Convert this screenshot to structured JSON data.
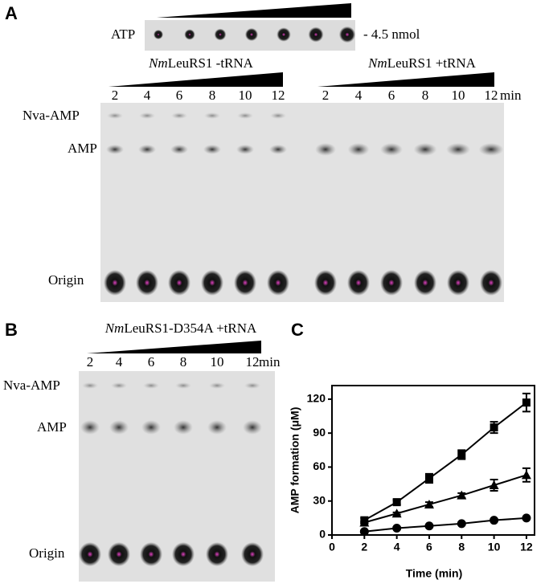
{
  "panel_a": {
    "label": "A",
    "atp_label": "ATP",
    "atp_amount": "- 4.5 nmol",
    "group_minus": {
      "italic": "Nm",
      "rest": "LeuRS1 -tRNA"
    },
    "group_plus": {
      "italic": "Nm",
      "rest": "LeuRS1 +tRNA"
    },
    "lanes": [
      "2",
      "4",
      "6",
      "8",
      "10",
      "12"
    ],
    "unit": "min",
    "rows": [
      "Nva-AMP",
      "AMP",
      "Origin"
    ]
  },
  "panel_b": {
    "label": "B",
    "group": {
      "italic": "Nm",
      "rest": "LeuRS1-D354A +tRNA"
    },
    "lanes": [
      "2",
      "4",
      "6",
      "8",
      "10",
      "12"
    ],
    "unit": "min",
    "rows": [
      "Nva-AMP",
      "AMP",
      "Origin"
    ]
  },
  "chart_data": {
    "type": "line",
    "label": "C",
    "xlabel": "Time (min)",
    "ylabel": "AMP formation (μM)",
    "x": [
      2,
      4,
      6,
      8,
      10,
      12
    ],
    "xlim": [
      0,
      12.5
    ],
    "xticks": [
      0,
      2,
      4,
      6,
      8,
      10,
      12
    ],
    "ylim": [
      0,
      132
    ],
    "yticks": [
      0,
      30,
      60,
      90,
      120
    ],
    "series": [
      {
        "marker": "square",
        "color": "#000000",
        "values": [
          13,
          29,
          50,
          71,
          95,
          117
        ],
        "errors": [
          2,
          2,
          4,
          4,
          5,
          8
        ]
      },
      {
        "marker": "triangle",
        "color": "#000000",
        "values": [
          11,
          19,
          27,
          35,
          44,
          53
        ],
        "errors": [
          1,
          1,
          2,
          2,
          5,
          6
        ]
      },
      {
        "marker": "circle",
        "color": "#000000",
        "values": [
          3,
          6,
          8,
          10,
          13,
          15
        ],
        "errors": [
          1,
          1,
          1,
          1,
          1,
          1
        ]
      }
    ]
  }
}
